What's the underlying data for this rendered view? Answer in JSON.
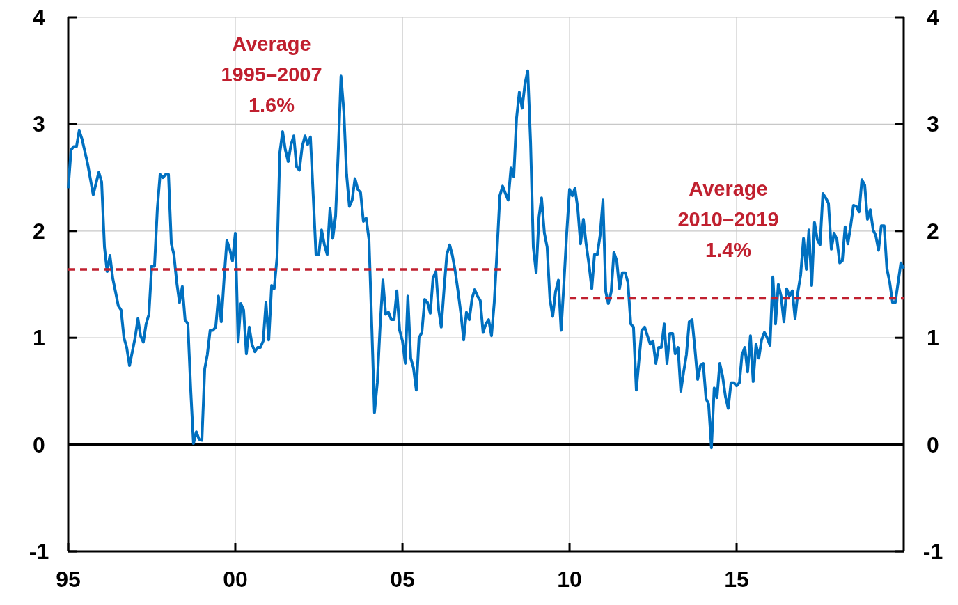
{
  "chart_data": {
    "type": "line",
    "xlim": [
      "1995-01",
      "2020-01"
    ],
    "xticks": [
      {
        "value": "1995-01",
        "label": "95"
      },
      {
        "value": "2000-01",
        "label": "00"
      },
      {
        "value": "2005-01",
        "label": "05"
      },
      {
        "value": "2010-01",
        "label": "10"
      },
      {
        "value": "2015-01",
        "label": "15"
      }
    ],
    "ylim": [
      -1,
      4
    ],
    "yticks": [
      -1,
      0,
      1,
      2,
      3,
      4
    ],
    "y2lim": [
      -1,
      4
    ],
    "y2ticks": [
      -1,
      0,
      1,
      2,
      3,
      4
    ],
    "grid": true,
    "ref_lines": [
      {
        "axis": "y",
        "value": 0,
        "color": "#000000"
      }
    ],
    "annotations": [
      "Average\n1995–2007\n1.6%",
      "Average\n2010–2019\n1.4%"
    ],
    "series": [
      {
        "color": "#0070c0",
        "line_style": "solid",
        "x": [
          "1995-01",
          "1995-02",
          "1995-03",
          "1995-04",
          "1995-05",
          "1995-06",
          "1995-08",
          "1995-10",
          "1995-12",
          "1996-01",
          "1996-02",
          "1996-03",
          "1996-04",
          "1996-05",
          "1996-06",
          "1996-07",
          "1996-08",
          "1996-09",
          "1996-10",
          "1996-11",
          "1997-01",
          "1997-02",
          "1997-03",
          "1997-04",
          "1997-05",
          "1997-06",
          "1997-07",
          "1997-08",
          "1997-09",
          "1997-10",
          "1997-11",
          "1997-12",
          "1998-01",
          "1998-02",
          "1998-03",
          "1998-04",
          "1998-05",
          "1998-06",
          "1998-07",
          "1998-08",
          "1998-09",
          "1998-10",
          "1998-11",
          "1998-12",
          "1999-01",
          "1999-02",
          "1999-03",
          "1999-04",
          "1999-05",
          "1999-06",
          "1999-07",
          "1999-08",
          "1999-09",
          "1999-10",
          "1999-11",
          "1999-12",
          "2000-01",
          "2000-02",
          "2000-03",
          "2000-04",
          "2000-05",
          "2000-06",
          "2000-07",
          "2000-08",
          "2000-09",
          "2000-10",
          "2000-11",
          "2000-12",
          "2001-01",
          "2001-02",
          "2001-03",
          "2001-04",
          "2001-05",
          "2001-06",
          "2001-07",
          "2001-08",
          "2001-09",
          "2001-10",
          "2001-11",
          "2001-12",
          "2002-01",
          "2002-02",
          "2002-03",
          "2002-04",
          "2002-05",
          "2002-06",
          "2002-07",
          "2002-08",
          "2002-09",
          "2002-10",
          "2002-11",
          "2002-12",
          "2003-01",
          "2003-02",
          "2003-03",
          "2003-04",
          "2003-05",
          "2003-06",
          "2003-07",
          "2003-08",
          "2003-09",
          "2003-10",
          "2003-11",
          "2003-12",
          "2004-01",
          "2004-02",
          "2004-03",
          "2004-04",
          "2004-05",
          "2004-06",
          "2004-07",
          "2004-08",
          "2004-09",
          "2004-10",
          "2004-11",
          "2004-12",
          "2005-01",
          "2005-02",
          "2005-03",
          "2005-04",
          "2005-05",
          "2005-06",
          "2005-07",
          "2005-08",
          "2005-09",
          "2005-10",
          "2005-11",
          "2005-12",
          "2006-01",
          "2006-02",
          "2006-03",
          "2006-04",
          "2006-05",
          "2006-06",
          "2006-07",
          "2006-08",
          "2006-09",
          "2006-10",
          "2006-11",
          "2006-12",
          "2007-01",
          "2007-02",
          "2007-03",
          "2007-04",
          "2007-05",
          "2007-06",
          "2007-07",
          "2007-08",
          "2007-09",
          "2007-10",
          "2007-11",
          "2007-12",
          "2008-01",
          "2008-02",
          "2008-03",
          "2008-04",
          "2008-05",
          "2008-06",
          "2008-07",
          "2008-08",
          "2008-09",
          "2008-10",
          "2008-11",
          "2008-12",
          "2009-01",
          "2009-02",
          "2009-03",
          "2009-04",
          "2009-05",
          "2009-06",
          "2009-07",
          "2009-08",
          "2009-09",
          "2009-10",
          "2009-11",
          "2009-12",
          "2010-01",
          "2010-02",
          "2010-03",
          "2010-04",
          "2010-05",
          "2010-06",
          "2010-07",
          "2010-08",
          "2010-09",
          "2010-10",
          "2010-11",
          "2010-12",
          "2011-01",
          "2011-02",
          "2011-03",
          "2011-04",
          "2011-05",
          "2011-06",
          "2011-07",
          "2011-08",
          "2011-09",
          "2011-10",
          "2011-11",
          "2011-12",
          "2012-01",
          "2012-02",
          "2012-03",
          "2012-04",
          "2012-05",
          "2012-06",
          "2012-07",
          "2012-08",
          "2012-09",
          "2012-10",
          "2012-11",
          "2012-12",
          "2013-01",
          "2013-02",
          "2013-03",
          "2013-04",
          "2013-05",
          "2013-06",
          "2013-07",
          "2013-08",
          "2013-09",
          "2013-10",
          "2013-11",
          "2013-12",
          "2014-01",
          "2014-02",
          "2014-03",
          "2014-04",
          "2014-05",
          "2014-06",
          "2014-07",
          "2014-08",
          "2014-09",
          "2014-10",
          "2014-11",
          "2014-12",
          "2015-01",
          "2015-02",
          "2015-03",
          "2015-04",
          "2015-05",
          "2015-06",
          "2015-07",
          "2015-08",
          "2015-09",
          "2015-10",
          "2015-11",
          "2015-12",
          "2016-01",
          "2016-02",
          "2016-03",
          "2016-04",
          "2016-05",
          "2016-06",
          "2016-07",
          "2016-08",
          "2016-09",
          "2016-10",
          "2016-11",
          "2016-12",
          "2017-01",
          "2017-02",
          "2017-03",
          "2017-04",
          "2017-05",
          "2017-06",
          "2017-07",
          "2017-08",
          "2017-09",
          "2017-10",
          "2017-11",
          "2017-12",
          "2018-01",
          "2018-02",
          "2018-03",
          "2018-04",
          "2018-05",
          "2018-06",
          "2018-07",
          "2018-08",
          "2018-09",
          "2018-10",
          "2018-11",
          "2018-12",
          "2019-01",
          "2019-02",
          "2019-03",
          "2019-04",
          "2019-05",
          "2019-06",
          "2019-07",
          "2019-08",
          "2019-09",
          "2019-10",
          "2019-11",
          "2019-12",
          "2020-01"
        ],
        "values": [
          2.4,
          2.76,
          2.79,
          2.79,
          2.94,
          2.86,
          2.63,
          2.34,
          2.55,
          2.46,
          1.85,
          1.62,
          1.77,
          1.56,
          1.43,
          1.3,
          1.26,
          1.0,
          0.91,
          0.74,
          1.0,
          1.18,
          1.02,
          0.96,
          1.13,
          1.22,
          1.67,
          1.67,
          2.21,
          2.53,
          2.5,
          2.53,
          2.53,
          1.88,
          1.78,
          1.52,
          1.33,
          1.48,
          1.17,
          1.13,
          0.51,
          0.01,
          0.12,
          0.05,
          0.04,
          0.71,
          0.84,
          1.07,
          1.07,
          1.1,
          1.39,
          1.15,
          1.56,
          1.91,
          1.83,
          1.72,
          1.98,
          0.96,
          1.32,
          1.26,
          0.85,
          1.1,
          0.94,
          0.87,
          0.91,
          0.91,
          0.97,
          1.33,
          0.98,
          1.49,
          1.46,
          1.75,
          2.73,
          2.93,
          2.76,
          2.65,
          2.81,
          2.89,
          2.6,
          2.57,
          2.79,
          2.89,
          2.81,
          2.88,
          2.34,
          1.78,
          1.78,
          2.01,
          1.87,
          1.78,
          2.21,
          1.93,
          2.14,
          2.79,
          3.45,
          3.12,
          2.53,
          2.23,
          2.29,
          2.49,
          2.39,
          2.36,
          2.09,
          2.12,
          1.92,
          1.1,
          0.3,
          0.58,
          1.1,
          1.54,
          1.22,
          1.24,
          1.17,
          1.17,
          1.44,
          1.07,
          0.97,
          0.76,
          1.39,
          0.81,
          0.72,
          0.51,
          1.0,
          1.05,
          1.36,
          1.33,
          1.23,
          1.56,
          1.62,
          1.26,
          1.1,
          1.46,
          1.78,
          1.87,
          1.77,
          1.62,
          1.43,
          1.23,
          0.98,
          1.24,
          1.17,
          1.37,
          1.45,
          1.39,
          1.35,
          1.05,
          1.13,
          1.17,
          1.02,
          1.33,
          1.82,
          2.33,
          2.42,
          2.35,
          2.29,
          2.59,
          2.51,
          3.06,
          3.3,
          3.15,
          3.38,
          3.5,
          2.83,
          1.85,
          1.61,
          2.13,
          2.31,
          1.98,
          1.85,
          1.36,
          1.2,
          1.43,
          1.54,
          1.07,
          1.52,
          1.98,
          2.39,
          2.33,
          2.4,
          2.21,
          1.88,
          2.11,
          1.88,
          1.69,
          1.46,
          1.78,
          1.78,
          1.96,
          2.29,
          1.43,
          1.32,
          1.43,
          1.8,
          1.72,
          1.46,
          1.61,
          1.61,
          1.52,
          1.13,
          1.1,
          0.51,
          0.81,
          1.07,
          1.1,
          1.02,
          0.94,
          0.97,
          0.76,
          0.91,
          0.91,
          1.13,
          0.76,
          1.04,
          1.04,
          0.85,
          0.91,
          0.5,
          0.68,
          0.84,
          1.15,
          1.17,
          0.91,
          0.61,
          0.74,
          0.76,
          0.43,
          0.38,
          -0.03,
          0.53,
          0.44,
          0.76,
          0.64,
          0.45,
          0.34,
          0.58,
          0.58,
          0.55,
          0.58,
          0.84,
          0.91,
          0.68,
          1.02,
          0.59,
          0.94,
          0.81,
          0.98,
          1.05,
          1.0,
          0.93,
          1.57,
          1.13,
          1.5,
          1.39,
          1.15,
          1.46,
          1.39,
          1.44,
          1.18,
          1.43,
          1.59,
          1.93,
          1.64,
          2.01,
          1.49,
          2.08,
          1.92,
          1.87,
          2.35,
          2.31,
          2.26,
          1.83,
          1.98,
          1.92,
          1.7,
          1.72,
          2.04,
          1.88,
          2.05,
          2.24,
          2.23,
          2.18,
          2.48,
          2.43,
          2.11,
          2.2,
          2.01,
          1.96,
          1.82,
          2.05,
          2.05,
          1.65,
          1.52,
          1.33,
          1.33,
          1.52,
          1.7,
          1.65
        ]
      },
      {
        "color": "#c0202f",
        "line_style": "dashed",
        "x": [
          "1995-01",
          "2008-01"
        ],
        "values": [
          1.64,
          1.64
        ]
      },
      {
        "color": "#c0202f",
        "line_style": "dashed",
        "x": [
          "2010-01",
          "2020-01"
        ],
        "values": [
          1.37,
          1.37
        ]
      }
    ]
  }
}
